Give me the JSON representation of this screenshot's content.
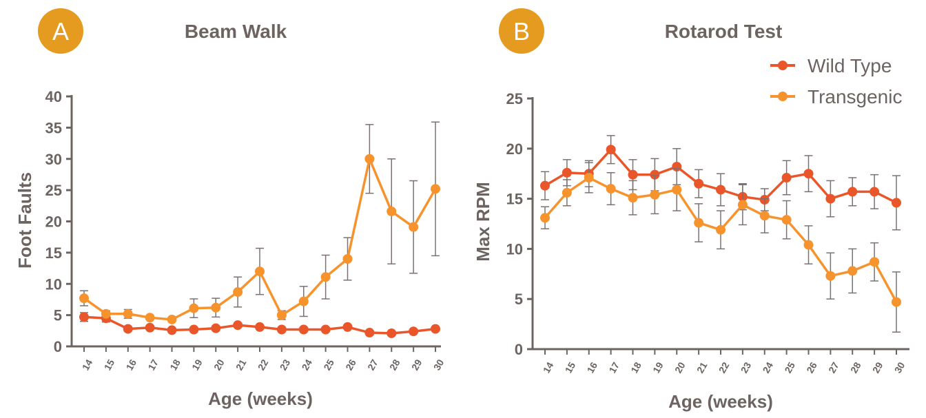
{
  "colors": {
    "wild_type": "#E8562A",
    "transgenic": "#F7932D",
    "badge": "#E49B1F",
    "text": "#6d6462",
    "error_bar": "#7a7270"
  },
  "legend": [
    {
      "name": "Wild Type"
    },
    {
      "name": "Transgenic"
    }
  ],
  "chart_data": [
    {
      "type": "line",
      "panel": "A",
      "title": "Beam Walk",
      "xlabel": "Age (weeks)",
      "ylabel": "Foot Faults",
      "x": [
        14,
        15,
        16,
        17,
        18,
        19,
        20,
        21,
        22,
        23,
        24,
        25,
        26,
        27,
        28,
        29,
        30
      ],
      "ylim": [
        0,
        40
      ],
      "yticks": [
        0,
        5,
        10,
        15,
        20,
        25,
        30,
        35,
        40
      ],
      "grid": false,
      "series": [
        {
          "name": "Wild Type",
          "values": [
            4.7,
            4.5,
            2.8,
            3.0,
            2.6,
            2.7,
            2.9,
            3.4,
            3.1,
            2.7,
            2.7,
            2.7,
            3.1,
            2.2,
            2.1,
            2.4,
            2.8
          ],
          "error": [
            0.7,
            0.6,
            0.3,
            0.3,
            0.3,
            0.3,
            0.3,
            0.3,
            0.3,
            0.3,
            0.3,
            0.3,
            0.3,
            0.3,
            0.3,
            0.3,
            0.3
          ]
        },
        {
          "name": "Transgenic",
          "values": [
            7.7,
            5.2,
            5.2,
            4.6,
            4.3,
            6.1,
            6.2,
            8.7,
            12.0,
            5.0,
            7.2,
            11.1,
            14.0,
            30.0,
            21.6,
            19.1,
            25.2
          ],
          "error": [
            1.2,
            0.5,
            0.7,
            0.3,
            0.3,
            1.5,
            1.5,
            2.4,
            3.7,
            0.7,
            2.4,
            3.5,
            3.4,
            5.5,
            8.4,
            7.4,
            10.7
          ]
        }
      ]
    },
    {
      "type": "line",
      "panel": "B",
      "title": "Rotarod Test",
      "xlabel": "Age (weeks)",
      "ylabel": "Max RPM",
      "x": [
        14,
        15,
        16,
        17,
        18,
        19,
        20,
        21,
        22,
        23,
        24,
        25,
        26,
        27,
        28,
        29,
        30
      ],
      "ylim": [
        0,
        25
      ],
      "yticks": [
        0,
        5,
        10,
        15,
        20,
        25
      ],
      "grid": false,
      "legend_position": "top-right",
      "series": [
        {
          "name": "Wild Type",
          "values": [
            16.3,
            17.6,
            17.5,
            19.9,
            17.4,
            17.4,
            18.2,
            16.5,
            15.9,
            15.2,
            14.9,
            17.1,
            17.5,
            15.0,
            15.7,
            15.7,
            14.6
          ],
          "error": [
            1.4,
            1.3,
            1.3,
            1.4,
            1.5,
            1.6,
            1.8,
            1.4,
            1.6,
            1.3,
            1.1,
            1.7,
            1.8,
            1.8,
            1.4,
            1.7,
            2.7
          ]
        },
        {
          "name": "Transgenic",
          "values": [
            13.1,
            15.6,
            17.1,
            16.0,
            15.1,
            15.4,
            15.9,
            12.6,
            11.9,
            14.4,
            13.3,
            12.9,
            10.4,
            7.3,
            7.8,
            8.7,
            4.7
          ],
          "error": [
            1.1,
            1.3,
            1.5,
            1.6,
            1.7,
            1.9,
            2.1,
            1.9,
            1.9,
            2.0,
            1.7,
            1.9,
            1.9,
            2.3,
            2.2,
            1.9,
            3.0
          ]
        }
      ]
    }
  ]
}
